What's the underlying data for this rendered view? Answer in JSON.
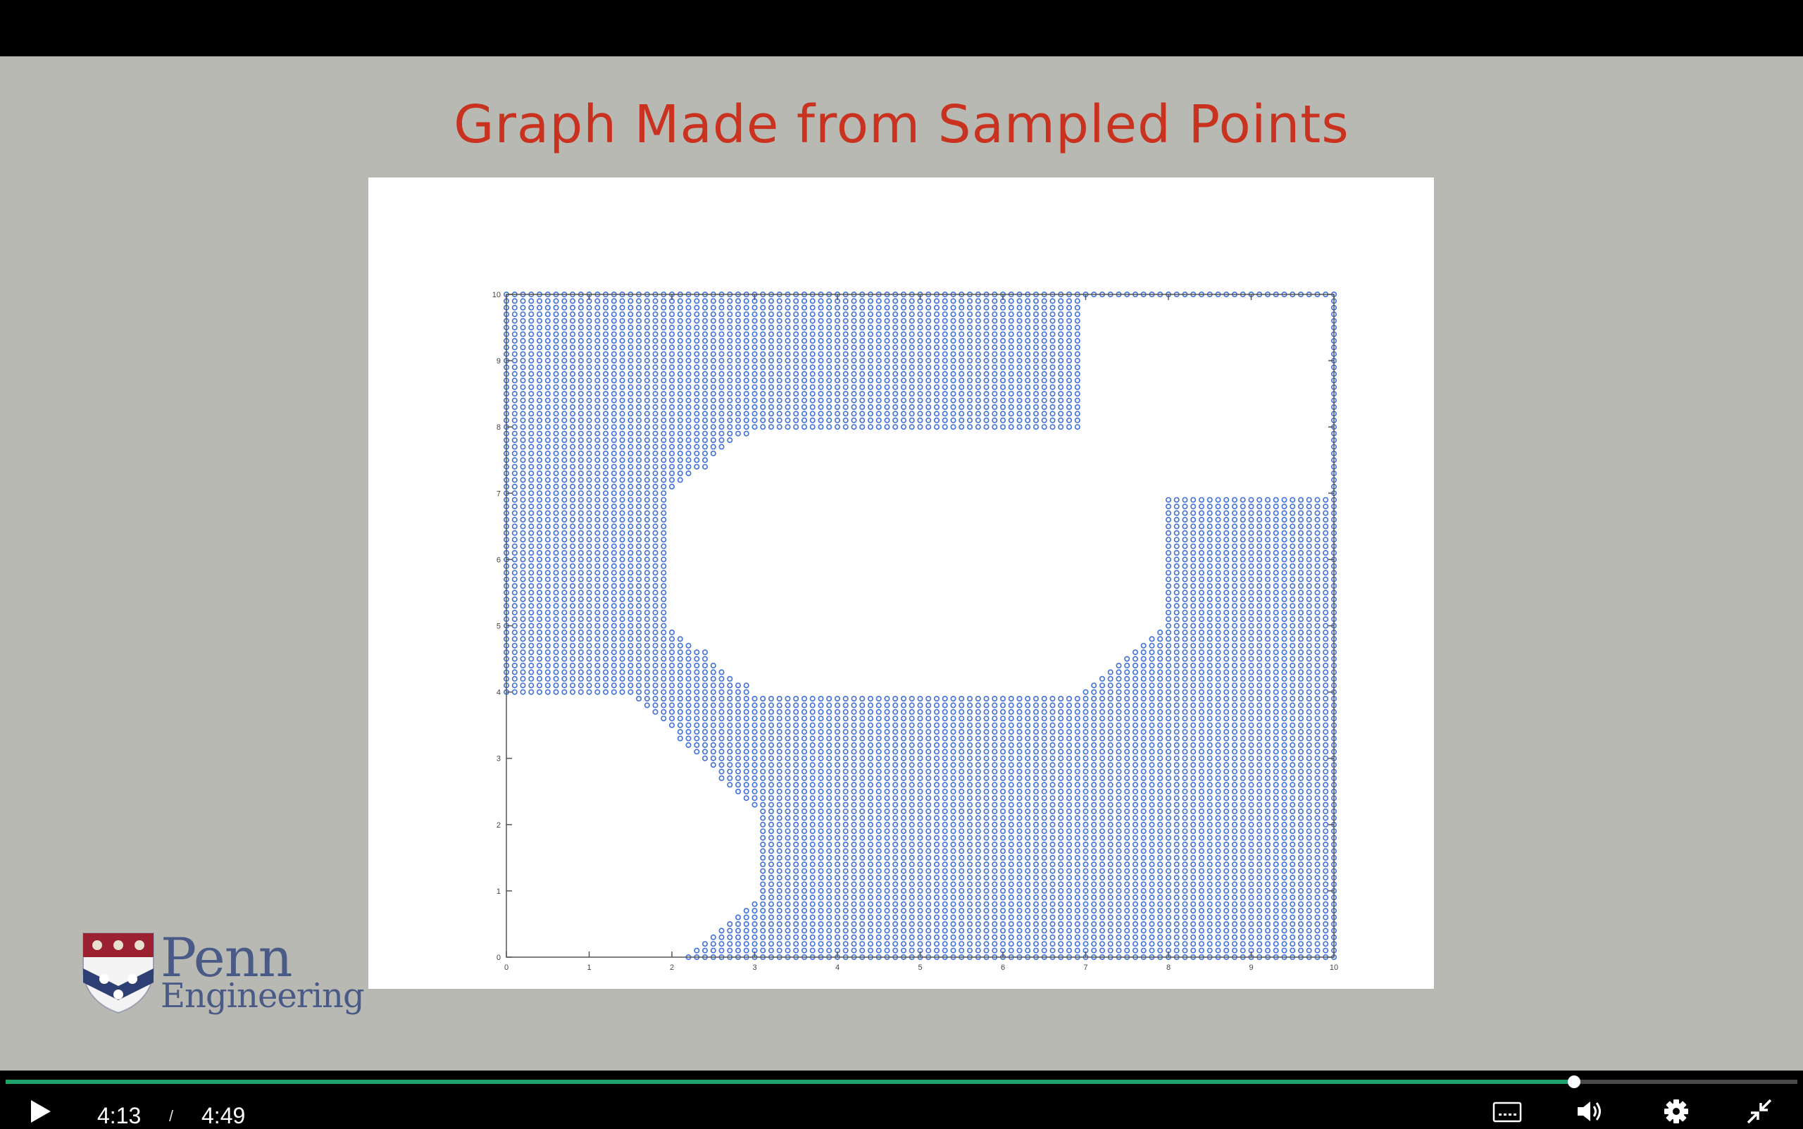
{
  "slide": {
    "title": "Graph Made from Sampled Points"
  },
  "logo": {
    "penn": "Penn",
    "engineering": "Engineering"
  },
  "player": {
    "current_time": "4:13",
    "separator": "/",
    "total_time": "4:49",
    "progress_fraction": 0.8754,
    "accent_color": "#1ea36b"
  },
  "chart_data": {
    "type": "scatter",
    "title": "",
    "xlabel": "",
    "ylabel": "",
    "xlim": [
      0,
      10
    ],
    "ylim": [
      0,
      10
    ],
    "grid_step": 0.1,
    "point_color": "#3f6fd8",
    "x_ticks": [
      "0",
      "1",
      "2",
      "3",
      "4",
      "5",
      "6",
      "7",
      "8",
      "9",
      "10"
    ],
    "y_ticks": [
      "0",
      "1",
      "2",
      "3",
      "4",
      "5",
      "6",
      "7",
      "8",
      "9",
      "10"
    ],
    "obstacles": [
      [
        [
          0,
          0
        ],
        [
          2.2,
          0
        ],
        [
          3.1,
          1.0
        ],
        [
          3.1,
          2.1
        ],
        [
          1.5,
          4.0
        ],
        [
          0,
          4.0
        ]
      ],
      [
        [
          2,
          5
        ],
        [
          3,
          4
        ],
        [
          7,
          4
        ],
        [
          8,
          5
        ],
        [
          8,
          7
        ],
        [
          10,
          7
        ],
        [
          10,
          8
        ],
        [
          7,
          8
        ],
        [
          7,
          10
        ],
        [
          10,
          10
        ],
        [
          10,
          8
        ],
        [
          3,
          8
        ],
        [
          2,
          7
        ]
      ]
    ],
    "free_regions_note": ""
  }
}
